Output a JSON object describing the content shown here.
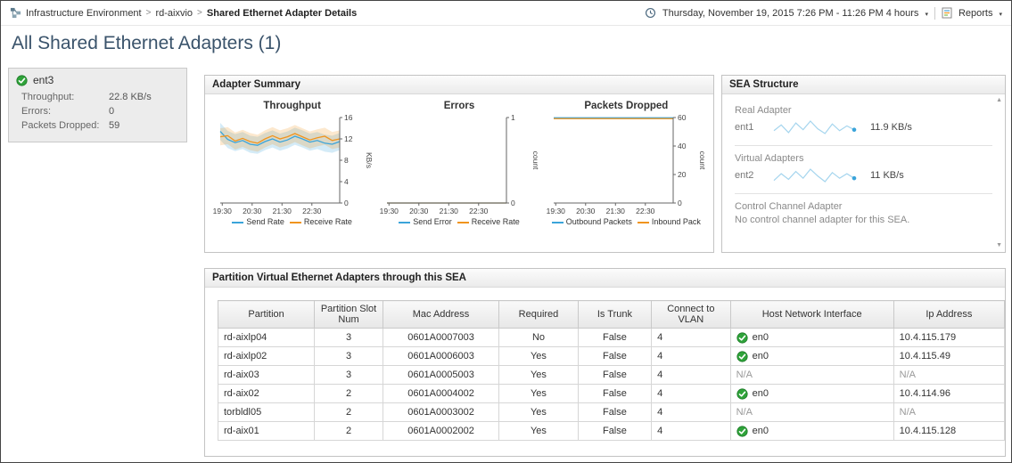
{
  "header": {
    "breadcrumb": [
      "Infrastructure Environment",
      "rd-aixvio",
      "Shared Ethernet Adapter Details"
    ],
    "separator": ">",
    "time_range": "Thursday, November 19, 2015 7:26 PM - 11:26 PM 4 hours",
    "reports_label": "Reports"
  },
  "icons": {
    "dropdown_caret": "▾",
    "scroll_up": "▲",
    "scroll_down": "▼"
  },
  "page_title": "All Shared Ethernet Adapters (1)",
  "adapter_card": {
    "name": "ent3",
    "status": "ok",
    "metrics": [
      {
        "label": "Throughput:",
        "value": "22.8 KB/s"
      },
      {
        "label": "Errors:",
        "value": "0"
      },
      {
        "label": "Packets Dropped:",
        "value": "59"
      }
    ]
  },
  "adapter_summary": {
    "title": "Adapter Summary"
  },
  "sea_structure": {
    "title": "SEA Structure",
    "real_adapter": {
      "label": "Real Adapter",
      "name": "ent1",
      "value": "11.9 KB/s",
      "spark": [
        11.8,
        12.4,
        11.6,
        12.6,
        11.9,
        12.8,
        12.0,
        11.5,
        12.5,
        11.8,
        12.3,
        11.9
      ]
    },
    "virtual_adapters": {
      "label": "Virtual Adapters",
      "name": "ent2",
      "value": "11 KB/s",
      "spark": [
        10.8,
        11.4,
        10.9,
        11.6,
        11.0,
        11.8,
        11.2,
        10.7,
        11.5,
        11.0,
        11.4,
        11.0
      ]
    },
    "control_channel": {
      "label": "Control Channel Adapter",
      "message": "No control channel adapter for this SEA."
    }
  },
  "partition_table": {
    "title": "Partition Virtual Ethernet Adapters through this SEA",
    "columns": [
      "Partition",
      "Partition Slot Num",
      "Mac Address",
      "Required",
      "Is Trunk",
      "Connect to VLAN",
      "Host Network Interface",
      "Ip Address"
    ],
    "rows": [
      {
        "partition": "rd-aixlp04",
        "slot_num": "3",
        "mac_address": "0601A0007003",
        "required": "No",
        "is_trunk": "False",
        "connect_to_vlan": "4",
        "host_network_interface": "en0",
        "host_if_status": "up",
        "ip_address": "10.4.115.179"
      },
      {
        "partition": "rd-aixlp02",
        "slot_num": "3",
        "mac_address": "0601A0006003",
        "required": "Yes",
        "is_trunk": "False",
        "connect_to_vlan": "4",
        "host_network_interface": "en0",
        "host_if_status": "up",
        "ip_address": "10.4.115.49"
      },
      {
        "partition": "rd-aix03",
        "slot_num": "3",
        "mac_address": "0601A0005003",
        "required": "Yes",
        "is_trunk": "False",
        "connect_to_vlan": "4",
        "host_network_interface": "N/A",
        "host_if_status": "none",
        "ip_address": "N/A"
      },
      {
        "partition": "rd-aix02",
        "slot_num": "2",
        "mac_address": "0601A0004002",
        "required": "Yes",
        "is_trunk": "False",
        "connect_to_vlan": "4",
        "host_network_interface": "en0",
        "host_if_status": "up",
        "ip_address": "10.4.114.96"
      },
      {
        "partition": "torbldl05",
        "slot_num": "2",
        "mac_address": "0601A0003002",
        "required": "Yes",
        "is_trunk": "False",
        "connect_to_vlan": "4",
        "host_network_interface": "N/A",
        "host_if_status": "none",
        "ip_address": "N/A"
      },
      {
        "partition": "rd-aix01",
        "slot_num": "2",
        "mac_address": "0601A0002002",
        "required": "Yes",
        "is_trunk": "False",
        "connect_to_vlan": "4",
        "host_network_interface": "en0",
        "host_if_status": "up",
        "ip_address": "10.4.115.128"
      }
    ]
  },
  "chart_data": [
    {
      "type": "line",
      "title": "Throughput",
      "ylabel": "KB/s",
      "ylim": [
        0,
        16
      ],
      "yticks": [
        0,
        4,
        8,
        12,
        16
      ],
      "xticklabels": [
        "19:30",
        "20:30",
        "21:30",
        "22:30"
      ],
      "legend_position": "bottom",
      "series": [
        {
          "name": "Send Rate",
          "color": "#3aa4da",
          "band": 1.6,
          "values": [
            13.4,
            11.9,
            11.3,
            11.7,
            11.0,
            10.8,
            11.5,
            12.0,
            11.4,
            11.8,
            12.5,
            12.0,
            11.4,
            11.7,
            11.2,
            11.0,
            11.5
          ]
        },
        {
          "name": "Receive Rate",
          "color": "#f0941e",
          "band": 1.6,
          "values": [
            12.4,
            12.6,
            11.6,
            12.1,
            11.5,
            11.2,
            12.0,
            12.6,
            12.0,
            12.4,
            13.0,
            12.4,
            11.8,
            12.2,
            12.5,
            11.7,
            12.0
          ]
        }
      ]
    },
    {
      "type": "line",
      "title": "Errors",
      "ylabel": "count",
      "ylim": [
        0,
        1
      ],
      "yticks": [
        0,
        1
      ],
      "xticklabels": [
        "19:30",
        "20:30",
        "21:30",
        "22:30"
      ],
      "legend_position": "bottom",
      "series": [
        {
          "name": "Send Error",
          "color": "#3aa4da",
          "values": [
            0,
            0,
            0,
            0,
            0,
            0,
            0,
            0,
            0,
            0,
            0,
            0,
            0,
            0,
            0,
            0,
            0
          ]
        },
        {
          "name": "Receive Rate",
          "color": "#f0941e",
          "values": [
            0,
            0,
            0,
            0,
            0,
            0,
            0,
            0,
            0,
            0,
            0,
            0,
            0,
            0,
            0,
            0,
            0
          ]
        }
      ]
    },
    {
      "type": "line",
      "title": "Packets Dropped",
      "ylabel": "count",
      "ylim": [
        0,
        60
      ],
      "yticks": [
        0,
        20,
        40,
        60
      ],
      "xticklabels": [
        "19:30",
        "20:30",
        "21:30",
        "22:30"
      ],
      "legend_position": "bottom",
      "series": [
        {
          "name": "Outbound Packets",
          "color": "#3aa4da",
          "values": [
            59.8,
            59.8,
            59.8,
            59.8,
            59.8,
            59.8,
            59.8,
            59.8,
            59.8,
            59.8,
            59.8,
            59.8,
            59.8,
            59.8,
            59.8,
            59.8,
            59.8
          ]
        },
        {
          "name": "Inbound Pack",
          "color": "#f0941e",
          "values": [
            59.2,
            59.2,
            59.2,
            59.2,
            59.2,
            59.2,
            59.2,
            59.2,
            59.2,
            59.2,
            59.2,
            59.2,
            59.2,
            59.2,
            59.2,
            59.2,
            59.2
          ]
        }
      ]
    }
  ]
}
